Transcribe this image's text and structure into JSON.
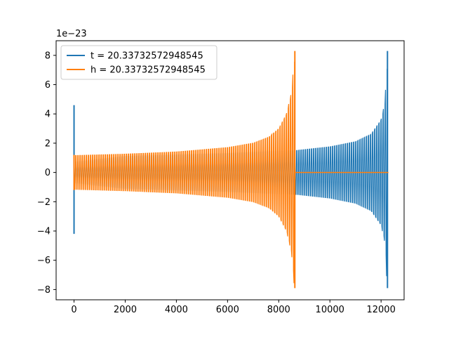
{
  "chart_data": {
    "type": "line",
    "title": "",
    "xlabel": "",
    "ylabel": "",
    "y_offset_label": "1e−23",
    "xlim": [
      -700,
      12900
    ],
    "ylim": [
      -8.7,
      9.0
    ],
    "xticks": [
      0,
      2000,
      4000,
      6000,
      8000,
      10000,
      12000
    ],
    "yticks": [
      -8,
      -6,
      -4,
      -2,
      0,
      2,
      4,
      6,
      8
    ],
    "tick_labels": {
      "x": [
        "0",
        "2000",
        "4000",
        "6000",
        "8000",
        "10000",
        "12000"
      ],
      "y": [
        "−8",
        "−6",
        "−4",
        "−2",
        "0",
        "2",
        "4",
        "6",
        "8"
      ]
    },
    "grid": false,
    "legend": {
      "placement": "top-left"
    },
    "series": [
      {
        "name": "t = 20.33732572948545",
        "color": "#1f77b4",
        "shape": "chirp",
        "start_spike": {
          "x": 0,
          "max": 4.6,
          "min": -4.2
        },
        "x_start": 0,
        "x_end": 12288,
        "envelope": [
          [
            0,
            0.7
          ],
          [
            2000,
            1.1
          ],
          [
            4000,
            1.2
          ],
          [
            6000,
            1.3
          ],
          [
            8000,
            1.45
          ],
          [
            8700,
            1.5
          ],
          [
            10000,
            1.75
          ],
          [
            11000,
            2.1
          ],
          [
            11600,
            2.6
          ],
          [
            12000,
            3.6
          ],
          [
            12150,
            4.8
          ],
          [
            12250,
            8.3
          ],
          [
            12270,
            -7.9
          ]
        ],
        "peak": {
          "x": 12250,
          "max": 8.3,
          "min": -7.9
        }
      },
      {
        "name": "h = 20.33732572948545",
        "color": "#ff7f0e",
        "shape": "chirp",
        "start_spike": {
          "x": 0,
          "max": 1.2,
          "min": -1.2
        },
        "x_start": 0,
        "x_end": 8650,
        "envelope": [
          [
            0,
            1.15
          ],
          [
            2000,
            1.25
          ],
          [
            4000,
            1.4
          ],
          [
            6000,
            1.7
          ],
          [
            7000,
            2.0
          ],
          [
            7600,
            2.4
          ],
          [
            8000,
            3.0
          ],
          [
            8300,
            4.0
          ],
          [
            8500,
            5.5
          ],
          [
            8630,
            8.3
          ]
        ],
        "peak": {
          "x": 8630,
          "max": 8.3,
          "min": -7.9
        },
        "tail": {
          "x_start": 8650,
          "x_end": 12288,
          "value": 0
        }
      }
    ]
  }
}
